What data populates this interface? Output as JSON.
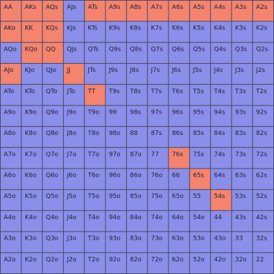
{
  "colors": {
    "in": "#f4846e",
    "out": "#8b8fe9"
  },
  "rows": [
    {
      "cells": [
        "AA",
        "AKs",
        "AQs",
        "AJs",
        "ATs",
        "A9s",
        "A8s",
        "A7s",
        "A6s",
        "A5s",
        "A4s",
        "A3s",
        "A2s"
      ],
      "in": [
        true,
        true,
        true,
        false,
        true,
        true,
        true,
        true,
        true,
        true,
        true,
        true,
        true
      ]
    },
    {
      "cells": [
        "AKo",
        "KK",
        "KQs",
        "KJs",
        "KTs",
        "K9s",
        "K8s",
        "K7s",
        "K6s",
        "K5s",
        "K4s",
        "K3s",
        "K2s"
      ],
      "in": [
        true,
        true,
        true,
        false,
        false,
        false,
        false,
        false,
        false,
        false,
        false,
        false,
        false
      ]
    },
    {
      "cells": [
        "AQo",
        "KQo",
        "QQ",
        "QJs",
        "QTs",
        "Q9s",
        "Q8s",
        "Q7s",
        "Q6s",
        "Q5s",
        "Q4s",
        "Q3s",
        "Q2s"
      ],
      "in": [
        false,
        true,
        true,
        false,
        false,
        false,
        false,
        false,
        false,
        false,
        false,
        false,
        false
      ]
    },
    {
      "cells": [
        "AJo",
        "KJo",
        "QJo",
        "JJ",
        "JTs",
        "J9s",
        "J8s",
        "J7s",
        "J6s",
        "J5s",
        "J4s",
        "J3s",
        "J2s"
      ],
      "in": [
        true,
        false,
        false,
        true,
        false,
        false,
        false,
        false,
        false,
        false,
        false,
        false,
        false
      ]
    },
    {
      "cells": [
        "ATo",
        "KTo",
        "QTo",
        "JTo",
        "TT",
        "T9s",
        "T8s",
        "T7s",
        "T6s",
        "T5s",
        "T4s",
        "T3s",
        "T2s"
      ],
      "in": [
        false,
        false,
        false,
        false,
        true,
        false,
        false,
        false,
        false,
        false,
        false,
        false,
        false
      ]
    },
    {
      "cells": [
        "A9o",
        "K9o",
        "Q9o",
        "J9o",
        "T9o",
        "99",
        "98s",
        "97s",
        "96s",
        "95s",
        "94s",
        "93s",
        "92s"
      ],
      "in": [
        false,
        false,
        false,
        false,
        false,
        false,
        false,
        false,
        false,
        false,
        false,
        false,
        false
      ]
    },
    {
      "cells": [
        "A8o",
        "K8o",
        "Q8o",
        "J8o",
        "T8o",
        "98o",
        "88",
        "87s",
        "86s",
        "85s",
        "84s",
        "83s",
        "82s"
      ],
      "in": [
        false,
        false,
        false,
        false,
        false,
        false,
        false,
        false,
        false,
        false,
        false,
        false,
        false
      ]
    },
    {
      "cells": [
        "A7o",
        "K7o",
        "Q7o",
        "J7o",
        "T7o",
        "97o",
        "87o",
        "77",
        "76s",
        "75s",
        "74s",
        "73s",
        "72s"
      ],
      "in": [
        false,
        false,
        false,
        false,
        false,
        false,
        false,
        false,
        true,
        false,
        false,
        false,
        false
      ]
    },
    {
      "cells": [
        "A6o",
        "K6o",
        "Q6o",
        "J6o",
        "T6o",
        "96o",
        "86o",
        "76o",
        "66",
        "65s",
        "64s",
        "63s",
        "62s"
      ],
      "in": [
        false,
        false,
        false,
        false,
        false,
        false,
        false,
        false,
        false,
        true,
        false,
        false,
        false
      ]
    },
    {
      "cells": [
        "A5o",
        "K5o",
        "Q5o",
        "J5o",
        "T5o",
        "95o",
        "85o",
        "75o",
        "65o",
        "55",
        "54s",
        "53s",
        "52s"
      ],
      "in": [
        false,
        false,
        false,
        false,
        false,
        false,
        false,
        false,
        false,
        false,
        true,
        false,
        false
      ]
    },
    {
      "cells": [
        "A4o",
        "K4o",
        "Q4o",
        "J4o",
        "T4o",
        "94o",
        "84o",
        "74o",
        "64o",
        "54o",
        "44",
        "43s",
        "42s"
      ],
      "in": [
        false,
        false,
        false,
        false,
        false,
        false,
        false,
        false,
        false,
        false,
        false,
        false,
        false
      ]
    },
    {
      "cells": [
        "A3o",
        "K3o",
        "Q3o",
        "J3o",
        "T3o",
        "93o",
        "83o",
        "73o",
        "63o",
        "53o",
        "43o",
        "33",
        "32s"
      ],
      "in": [
        false,
        false,
        false,
        false,
        false,
        false,
        false,
        false,
        false,
        false,
        false,
        false,
        false
      ]
    },
    {
      "cells": [
        "A2o",
        "K2o",
        "Q2o",
        "J2o",
        "T2o",
        "92o",
        "82o",
        "72o",
        "62o",
        "52o",
        "42o",
        "32o",
        "22"
      ],
      "in": [
        false,
        false,
        false,
        false,
        false,
        false,
        false,
        false,
        false,
        false,
        false,
        false,
        false
      ]
    }
  ]
}
